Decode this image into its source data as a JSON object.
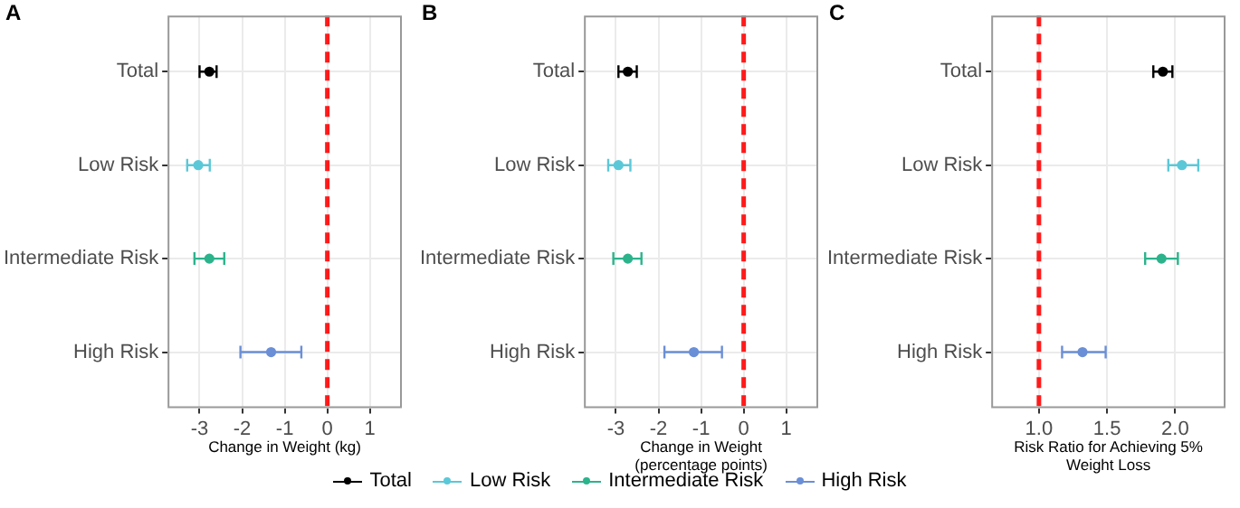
{
  "chart_data": [
    {
      "type": "scatter",
      "title": "A",
      "xlabel": "Change in Weight (kg)",
      "orientation": "horizontal",
      "categories": [
        "Total",
        "Low Risk",
        "Intermediate Risk",
        "High Risk"
      ],
      "xlim": [
        -3.75,
        1.75
      ],
      "xticks": [
        -3,
        -2,
        -1,
        0,
        1
      ],
      "grid": true,
      "marker": "circle",
      "legend": "bottom",
      "ref_lines": [
        {
          "axis": "x",
          "value": 0,
          "color": "#ff1a1a",
          "line_style": "dashed"
        }
      ],
      "series": [
        {
          "name": "Total",
          "color": "#000000",
          "values": [
            -2.77,
            null,
            null,
            null
          ],
          "errors": [
            [
              -3.0,
              -2.6
            ],
            null,
            null,
            null
          ]
        },
        {
          "name": "Low Risk",
          "color": "#5bc8d8",
          "values": [
            null,
            -3.03,
            null,
            null
          ],
          "errors": [
            null,
            [
              -3.29,
              -2.76
            ],
            null,
            null
          ]
        },
        {
          "name": "Intermediate Risk",
          "color": "#2cb38c",
          "values": [
            null,
            null,
            -2.77,
            null
          ],
          "errors": [
            null,
            null,
            [
              -3.12,
              -2.42
            ],
            null
          ]
        },
        {
          "name": "High Risk",
          "color": "#6b8fd6",
          "values": [
            null,
            null,
            null,
            -1.32
          ],
          "errors": [
            null,
            null,
            null,
            [
              -2.04,
              -0.61
            ]
          ]
        }
      ]
    },
    {
      "type": "scatter",
      "title": "B",
      "xlabel": "Change in Weight (percentage points)",
      "orientation": "horizontal",
      "categories": [
        "Total",
        "Low Risk",
        "Intermediate Risk",
        "High Risk"
      ],
      "xlim": [
        -3.75,
        1.75
      ],
      "xticks": [
        -3,
        -2,
        -1,
        0,
        1
      ],
      "grid": true,
      "marker": "circle",
      "ref_lines": [
        {
          "axis": "x",
          "value": 0,
          "color": "#ff1a1a",
          "line_style": "dashed"
        }
      ],
      "series": [
        {
          "color": "#000000",
          "values": [
            -2.72,
            null,
            null,
            null
          ],
          "errors": [
            [
              -2.94,
              -2.51
            ],
            null,
            null,
            null
          ]
        },
        {
          "color": "#5bc8d8",
          "values": [
            null,
            -2.94,
            null,
            null
          ],
          "errors": [
            null,
            [
              -3.18,
              -2.66
            ],
            null,
            null
          ]
        },
        {
          "color": "#2cb38c",
          "values": [
            null,
            null,
            -2.72,
            null
          ],
          "errors": [
            null,
            null,
            [
              -3.06,
              -2.4
            ],
            null
          ]
        },
        {
          "color": "#6b8fd6",
          "values": [
            null,
            null,
            null,
            -1.17
          ],
          "errors": [
            null,
            null,
            null,
            [
              -1.86,
              -0.51
            ]
          ]
        }
      ]
    },
    {
      "type": "scatter",
      "title": "C",
      "xlabel": "Risk Ratio for Achieving 5% Weight Loss",
      "orientation": "horizontal",
      "categories": [
        "Total",
        "Low Risk",
        "Intermediate Risk",
        "High Risk"
      ],
      "xlim": [
        0.65,
        2.37
      ],
      "xticks": [
        {
          "value": 1,
          "label": "1.0"
        },
        {
          "value": 1.5,
          "label": "1.5"
        },
        {
          "value": 2,
          "label": "2.0"
        }
      ],
      "grid": true,
      "marker": "circle",
      "ref_lines": [
        {
          "axis": "x",
          "value": 1,
          "color": "#ff1a1a",
          "line_style": "dashed"
        }
      ],
      "series": [
        {
          "color": "#000000",
          "values": [
            1.91,
            null,
            null,
            null
          ],
          "errors": [
            [
              1.84,
              1.98
            ],
            null,
            null,
            null
          ]
        },
        {
          "color": "#5bc8d8",
          "values": [
            null,
            2.05,
            null,
            null
          ],
          "errors": [
            null,
            [
              1.95,
              2.17
            ],
            null,
            null
          ]
        },
        {
          "color": "#2cb38c",
          "values": [
            null,
            null,
            1.9,
            null
          ],
          "errors": [
            null,
            null,
            [
              1.78,
              2.02
            ],
            null
          ]
        },
        {
          "color": "#6b8fd6",
          "values": [
            null,
            null,
            null,
            1.32
          ],
          "errors": [
            null,
            null,
            null,
            [
              1.17,
              1.49
            ]
          ]
        }
      ]
    }
  ]
}
